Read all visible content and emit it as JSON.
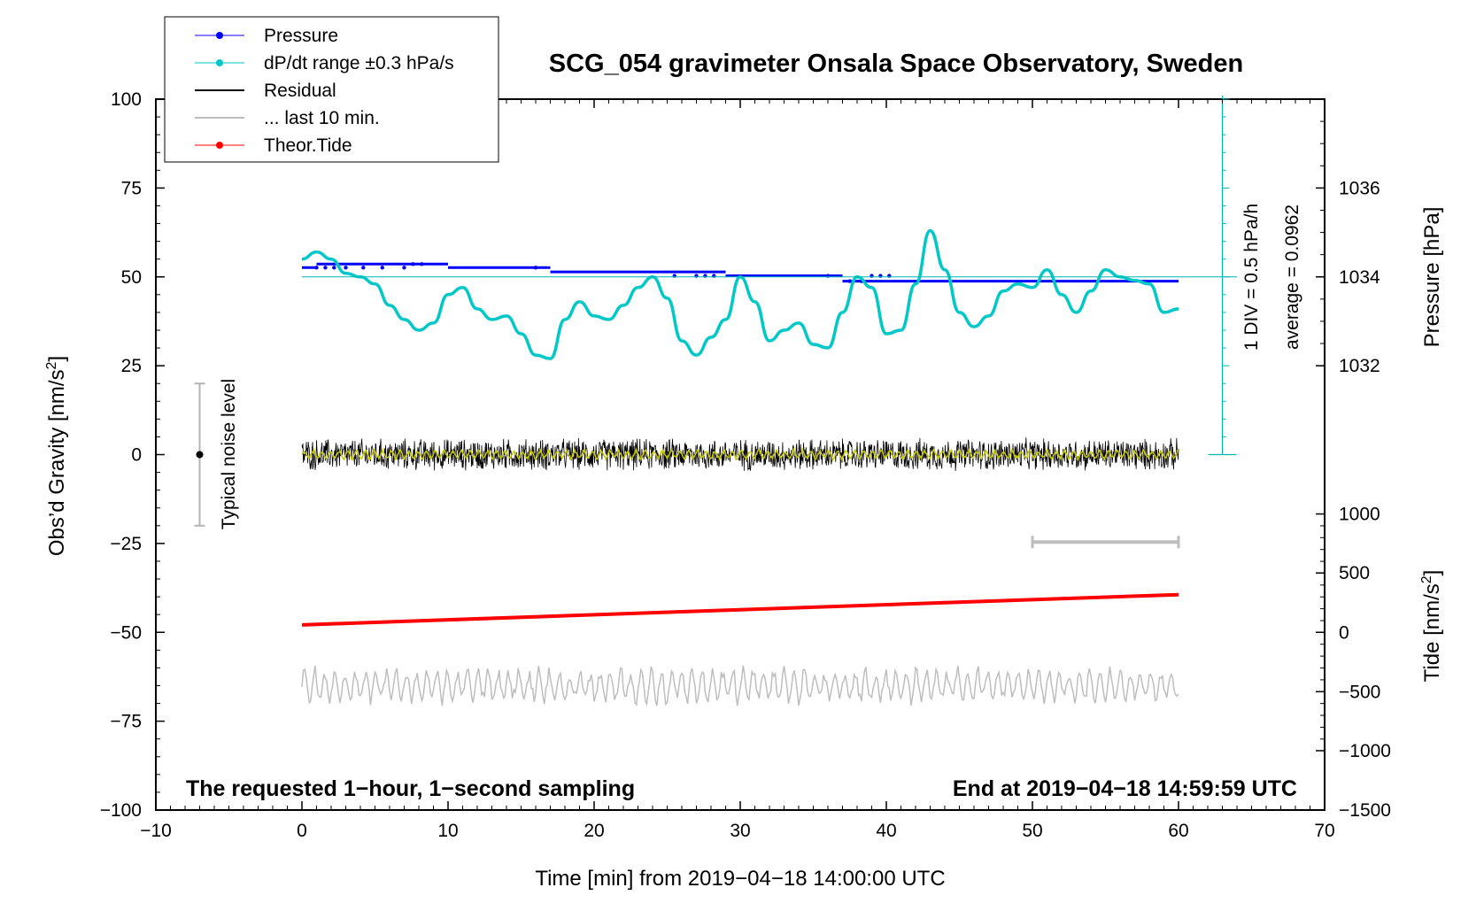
{
  "chart_data": {
    "type": "line",
    "title": "SCG_054 gravimeter Onsala Space Observatory, Sweden",
    "xlabel": "Time [min] from 2019−04−18 14:00:00 UTC",
    "ylabel_main": "Obs’d Gravity [nm/s",
    "ylabel_main_sup": "2",
    "ylabel_main_end": "]",
    "ylabel_pressure": "Pressure [hPa]",
    "ylabel_tide": "Tide [nm/s",
    "ylabel_tide_sup": "2",
    "ylabel_tide_end": "]",
    "xlim": [
      -10,
      70
    ],
    "ylim": [
      -100,
      100
    ],
    "x_ticks": [
      "−10",
      "0",
      "10",
      "20",
      "30",
      "40",
      "50",
      "60",
      "70"
    ],
    "x_tick_values": [
      -10,
      0,
      10,
      20,
      30,
      40,
      50,
      60,
      70
    ],
    "y_ticks": [
      "100",
      "75",
      "50",
      "25",
      "0",
      "−25",
      "−50",
      "−75",
      "−100"
    ],
    "y_tick_values": [
      100,
      75,
      50,
      25,
      0,
      -25,
      -50,
      -75,
      -100
    ],
    "pressure_axis": {
      "ticks": [
        "1036",
        "1034",
        "1032"
      ],
      "tick_values": [
        1036,
        1034,
        1032
      ],
      "gravity_equivalent": [
        75,
        50,
        25
      ]
    },
    "tide_axis": {
      "ticks": [
        "1000",
        "500",
        "0",
        "−500",
        "−1000",
        "−1500"
      ],
      "tick_values": [
        1000,
        500,
        0,
        -500,
        -1000,
        -1500
      ],
      "gravity_equivalent": [
        -16.7,
        -33.3,
        -50,
        -66.7,
        -83.3,
        -100
      ]
    },
    "legend": [
      {
        "name": "Pressure",
        "color": "#0000ff",
        "marker": true
      },
      {
        "name": "dP/dt range ±0.3 hPa/s",
        "color": "#00c8c8",
        "marker": true
      },
      {
        "name": "Residual",
        "color": "#000000",
        "marker": false
      },
      {
        "name": "... last 10 min.",
        "color": "#bebebe",
        "marker": false
      },
      {
        "name": "Theor.Tide",
        "color": "#ff0000",
        "marker": true
      }
    ],
    "series": [
      {
        "name": "Pressure",
        "color": "#0000ff",
        "x": [
          0,
          1,
          5,
          8,
          10,
          16.8,
          17,
          20,
          25,
          28.5,
          29,
          32,
          35,
          36.5,
          37,
          40,
          45,
          50,
          55,
          60
        ],
        "y": [
          52.6,
          53.6,
          53.6,
          53.6,
          52.6,
          52.6,
          51.4,
          51.4,
          51.4,
          51.4,
          50.3,
          50.3,
          50.3,
          50.3,
          48.8,
          48.8,
          48.8,
          48.8,
          48.8,
          48.8
        ]
      },
      {
        "name": "Pressure (dP/dt)",
        "color": "#00c8c8",
        "x": [
          0,
          1,
          2,
          3,
          4,
          5,
          6,
          7,
          8,
          9,
          10,
          11,
          12,
          13,
          14,
          15,
          16,
          17,
          18,
          19,
          20,
          21,
          22,
          23,
          24,
          25,
          26,
          27,
          28,
          29,
          30,
          31,
          32,
          33,
          34,
          35,
          36,
          37,
          38,
          39,
          40,
          41,
          42,
          43,
          44,
          45,
          46,
          47,
          48,
          49,
          50,
          51,
          52,
          53,
          54,
          55,
          56,
          57,
          58,
          59,
          60
        ],
        "y": [
          55,
          57,
          55,
          51,
          50,
          48,
          42,
          38,
          35,
          37,
          45,
          47,
          41,
          38,
          39,
          34,
          28,
          27,
          38,
          43,
          39,
          38,
          42,
          47,
          50,
          44,
          32,
          28,
          33,
          38,
          50,
          43,
          32,
          35,
          37,
          31,
          30,
          40,
          50,
          47,
          34,
          35,
          48,
          63,
          52,
          40,
          36,
          39,
          46,
          48,
          47,
          52,
          45,
          40,
          46,
          52,
          50,
          49,
          48,
          40,
          41
        ]
      },
      {
        "name": "Residual",
        "color": "#000000",
        "x_range": [
          0,
          60
        ],
        "y_center": 0,
        "amplitude": 5
      },
      {
        "name": "Residual smoothed",
        "color": "#c8c800",
        "x_range": [
          0,
          60
        ],
        "y_center": 0,
        "amplitude": 1.5
      },
      {
        "name": "... last 10 min.",
        "color": "#bebebe",
        "x_range": [
          0,
          60
        ],
        "y_center": -63,
        "amplitude": 5
      },
      {
        "name": "Theor.Tide",
        "color": "#ff0000",
        "x": [
          0,
          60
        ],
        "y": [
          -47.9,
          -39.4
        ]
      }
    ],
    "annotations": {
      "noise_label": "Typical noise level",
      "noise_range": [
        -20,
        20
      ],
      "noise_x": -7,
      "last10_bar": [
        50,
        60
      ],
      "last10_bar_y": -24.6,
      "div_label": "1 DIV = 0.5 hPa/h",
      "average_label": "average = 0.0962",
      "footer_left": "The requested 1−hour, 1−second sampling",
      "footer_right": "End at 2019−04−18 14:59:59 UTC"
    },
    "grid": false
  }
}
